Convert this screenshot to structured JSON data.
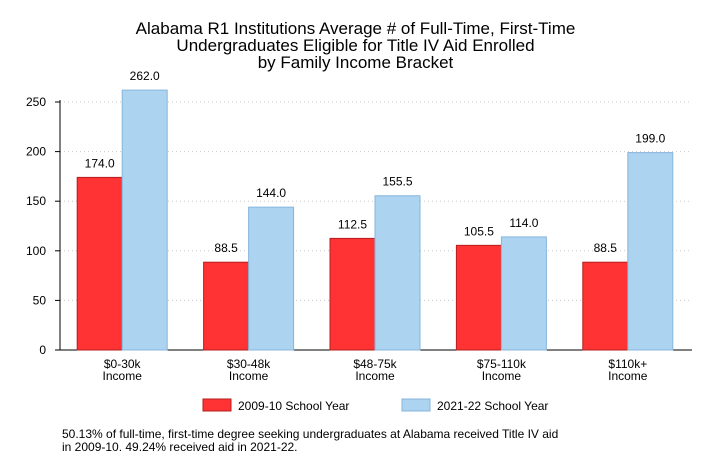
{
  "chart_data": {
    "type": "bar",
    "title": [
      "Alabama R1 Institutions Average # of Full-Time, First-Time",
      "Undergraduates Eligible for Title IV Aid Enrolled",
      "by Family Income Bracket"
    ],
    "categories": [
      [
        "$0-30k",
        "Income"
      ],
      [
        "$30-48k",
        "Income"
      ],
      [
        "$48-75k",
        "Income"
      ],
      [
        "$75-110k",
        "Income"
      ],
      [
        "$110k+",
        "Income"
      ]
    ],
    "series": [
      {
        "name": "2009-10 School Year",
        "values": [
          174.0,
          88.5,
          112.5,
          105.5,
          88.5
        ],
        "color": "#ff3333",
        "stroke": "#b51f1f"
      },
      {
        "name": "2021-22 School Year",
        "values": [
          262.0,
          144.0,
          155.5,
          114.0,
          199.0
        ],
        "color": "#acd3f0",
        "stroke": "#88b6dc"
      }
    ],
    "ylim": [
      0,
      250
    ],
    "yticks": [
      0,
      50,
      100,
      150,
      200,
      250
    ],
    "grid": true,
    "legend_position": "bottom"
  },
  "footnote": [
    "50.13% of full-time, first-time degree seeking undergraduates at Alabama received Title IV aid",
    "in 2009-10. 49.24% received aid in 2021-22."
  ]
}
